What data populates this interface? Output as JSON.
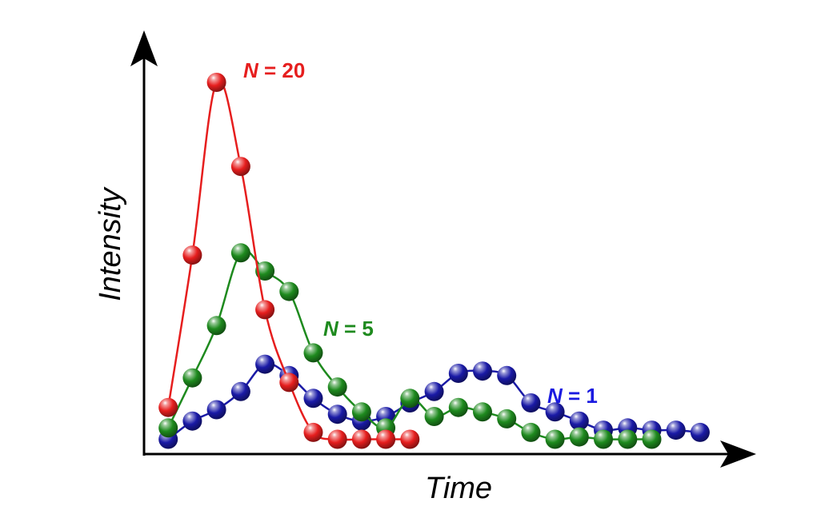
{
  "chart_data": {
    "type": "line",
    "xlabel": "Time",
    "ylabel": "Intensity",
    "xlim": [
      0,
      23.5
    ],
    "ylim": [
      0,
      16
    ],
    "grid": false,
    "x_ticks_shown": false,
    "y_ticks_shown": false,
    "series": [
      {
        "label_prefix": "N",
        "label_value": "= 1",
        "color": "#1a1aa6",
        "label_color": "#1a1ae0",
        "x": [
          1,
          2,
          3,
          4,
          5,
          6,
          7,
          8,
          9,
          10,
          11,
          12,
          13,
          14,
          15,
          16,
          17,
          18,
          19,
          20,
          21,
          22,
          23
        ],
        "values": [
          0.3,
          1.1,
          1.6,
          2.4,
          3.6,
          3.1,
          2.1,
          1.4,
          1.1,
          1.3,
          1.9,
          2.4,
          3.2,
          3.3,
          3.1,
          1.9,
          1.5,
          1.1,
          0.7,
          0.8,
          0.7,
          0.7,
          0.6
        ]
      },
      {
        "label_prefix": "N",
        "label_value": "= 5",
        "color": "#1e8a1e",
        "label_color": "#1e8a1e",
        "x": [
          1,
          2,
          3,
          4,
          5,
          6,
          7,
          8,
          9,
          10,
          11,
          12,
          13,
          14,
          15,
          16,
          17,
          18,
          19,
          20,
          21
        ],
        "values": [
          0.8,
          3.0,
          5.3,
          8.5,
          7.7,
          6.8,
          4.1,
          2.6,
          1.5,
          0.8,
          2.1,
          1.3,
          1.7,
          1.5,
          1.2,
          0.6,
          0.3,
          0.4,
          0.3,
          0.3,
          0.3
        ]
      },
      {
        "label_prefix": "N",
        "label_value": "= 20",
        "color": "#e61e1e",
        "label_color": "#e61e1e",
        "x": [
          1,
          2,
          3,
          4,
          5,
          6,
          7,
          8,
          9,
          10,
          11
        ],
        "values": [
          1.7,
          8.4,
          16.0,
          12.3,
          6.0,
          2.8,
          0.6,
          0.3,
          0.3,
          0.3,
          0.3
        ]
      }
    ]
  }
}
